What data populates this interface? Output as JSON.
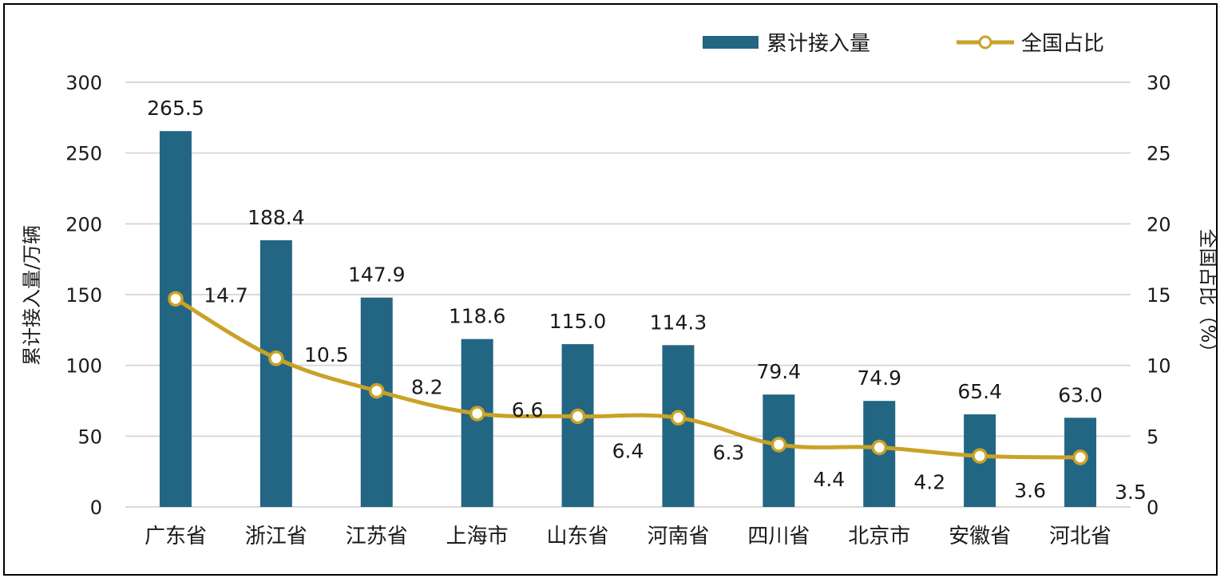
{
  "chart_data": {
    "type": "bar",
    "categories": [
      "广东省",
      "浙江省",
      "江苏省",
      "上海市",
      "山东省",
      "河南省",
      "四川省",
      "北京市",
      "安徽省",
      "河北省"
    ],
    "series": [
      {
        "name": "累计接入量",
        "type": "bar",
        "axis": "left",
        "values": [
          265.5,
          188.4,
          147.9,
          118.6,
          115.0,
          114.3,
          79.4,
          74.9,
          65.4,
          63.0
        ],
        "labels": [
          "265.5",
          "188.4",
          "147.9",
          "118.6",
          "115.0",
          "114.3",
          "79.4",
          "74.9",
          "65.4",
          "63.0"
        ]
      },
      {
        "name": "全国占比",
        "type": "line",
        "axis": "right",
        "values": [
          14.7,
          10.5,
          8.2,
          6.6,
          6.4,
          6.3,
          4.4,
          4.2,
          3.6,
          3.5
        ],
        "labels": [
          "14.7",
          "10.5",
          "8.2",
          "6.6",
          "6.4",
          "6.3",
          "4.4",
          "4.2",
          "3.6",
          "3.5"
        ]
      }
    ],
    "y_left": {
      "label": "累计接入量/万辆",
      "ylim": [
        0,
        300
      ],
      "ticks": [
        "0",
        "50",
        "100",
        "150",
        "200",
        "250",
        "300"
      ]
    },
    "y_right": {
      "label": "全国占比（%）",
      "ylim": [
        0,
        30
      ],
      "ticks": [
        "0",
        "5",
        "10",
        "15",
        "20",
        "25",
        "30"
      ]
    },
    "grid": true,
    "legend": "top-right",
    "colors": {
      "bar": "#236683",
      "line": "#c9a227",
      "grid": "#d9d9d9",
      "marker_fill": "#ffffff"
    }
  }
}
